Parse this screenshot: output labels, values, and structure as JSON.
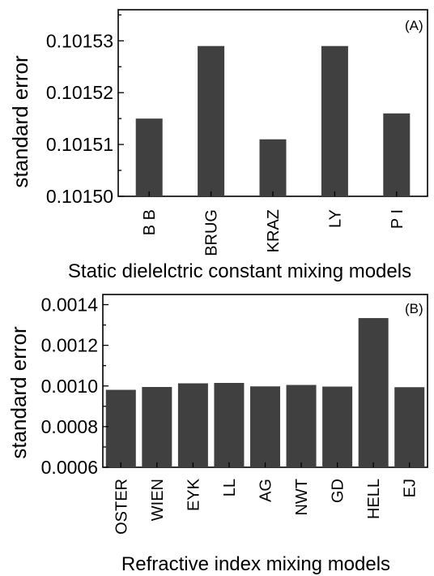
{
  "chart_data": [
    {
      "type": "bar",
      "panel_label": "(A)",
      "categories": [
        "B B",
        "BRUG",
        "KRAZ",
        "LY",
        "P I"
      ],
      "values": [
        0.101515,
        0.101529,
        0.101511,
        0.101529,
        0.101516
      ],
      "xlabel": "Static dielelctric constant mixing models",
      "ylabel": "standard error",
      "ylim": [
        0.1015,
        0.101536
      ],
      "yticks": [
        0.1015,
        0.10151,
        0.10152,
        0.10153
      ],
      "ytick_labels": [
        "0.10150",
        "0.10151",
        "0.10152",
        "0.10153"
      ],
      "grid": false,
      "bar_color": "#404040"
    },
    {
      "type": "bar",
      "panel_label": "(B)",
      "categories": [
        "OSTER",
        "WIEN",
        "EYK",
        "LL",
        "AG",
        "NWT",
        "GD",
        "HELL",
        "EJ"
      ],
      "values": [
        0.000981,
        0.000995,
        0.001013,
        0.001015,
        0.000998,
        0.001005,
        0.000997,
        0.001334,
        0.000994
      ],
      "xlabel": "Refractive index mixing models",
      "ylabel": "standard error",
      "ylim": [
        0.0006,
        0.00145
      ],
      "yticks": [
        0.0006,
        0.0008,
        0.001,
        0.0012,
        0.0014
      ],
      "ytick_labels": [
        "0.0006",
        "0.0008",
        "0.0010",
        "0.0012",
        "0.0014"
      ],
      "grid": false,
      "bar_color": "#404040"
    }
  ]
}
